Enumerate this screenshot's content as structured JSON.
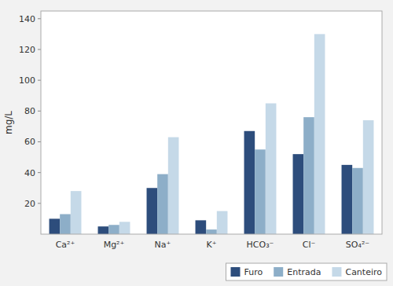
{
  "chart_data": {
    "type": "bar",
    "y_label": "mg/L",
    "categories": [
      "Ca²⁺",
      "Mg²⁺",
      "Na⁺",
      "K⁺",
      "HCO₃⁻",
      "Cl⁻",
      "SO₄²⁻"
    ],
    "series": [
      {
        "name": "Furo",
        "color": "#2d4d7c",
        "values": [
          10,
          5,
          30,
          9,
          67,
          52,
          45
        ]
      },
      {
        "name": "Entrada",
        "color": "#8daec8",
        "values": [
          13,
          6,
          39,
          3,
          55,
          76,
          43
        ]
      },
      {
        "name": "Canteiro",
        "color": "#c5d9e8",
        "values": [
          28,
          8,
          63,
          15,
          85,
          130,
          74
        ]
      }
    ],
    "ylim": [
      0,
      145
    ],
    "yticks": [
      20,
      40,
      60,
      80,
      100,
      120,
      140
    ],
    "grid": false,
    "legend": "lower right"
  }
}
